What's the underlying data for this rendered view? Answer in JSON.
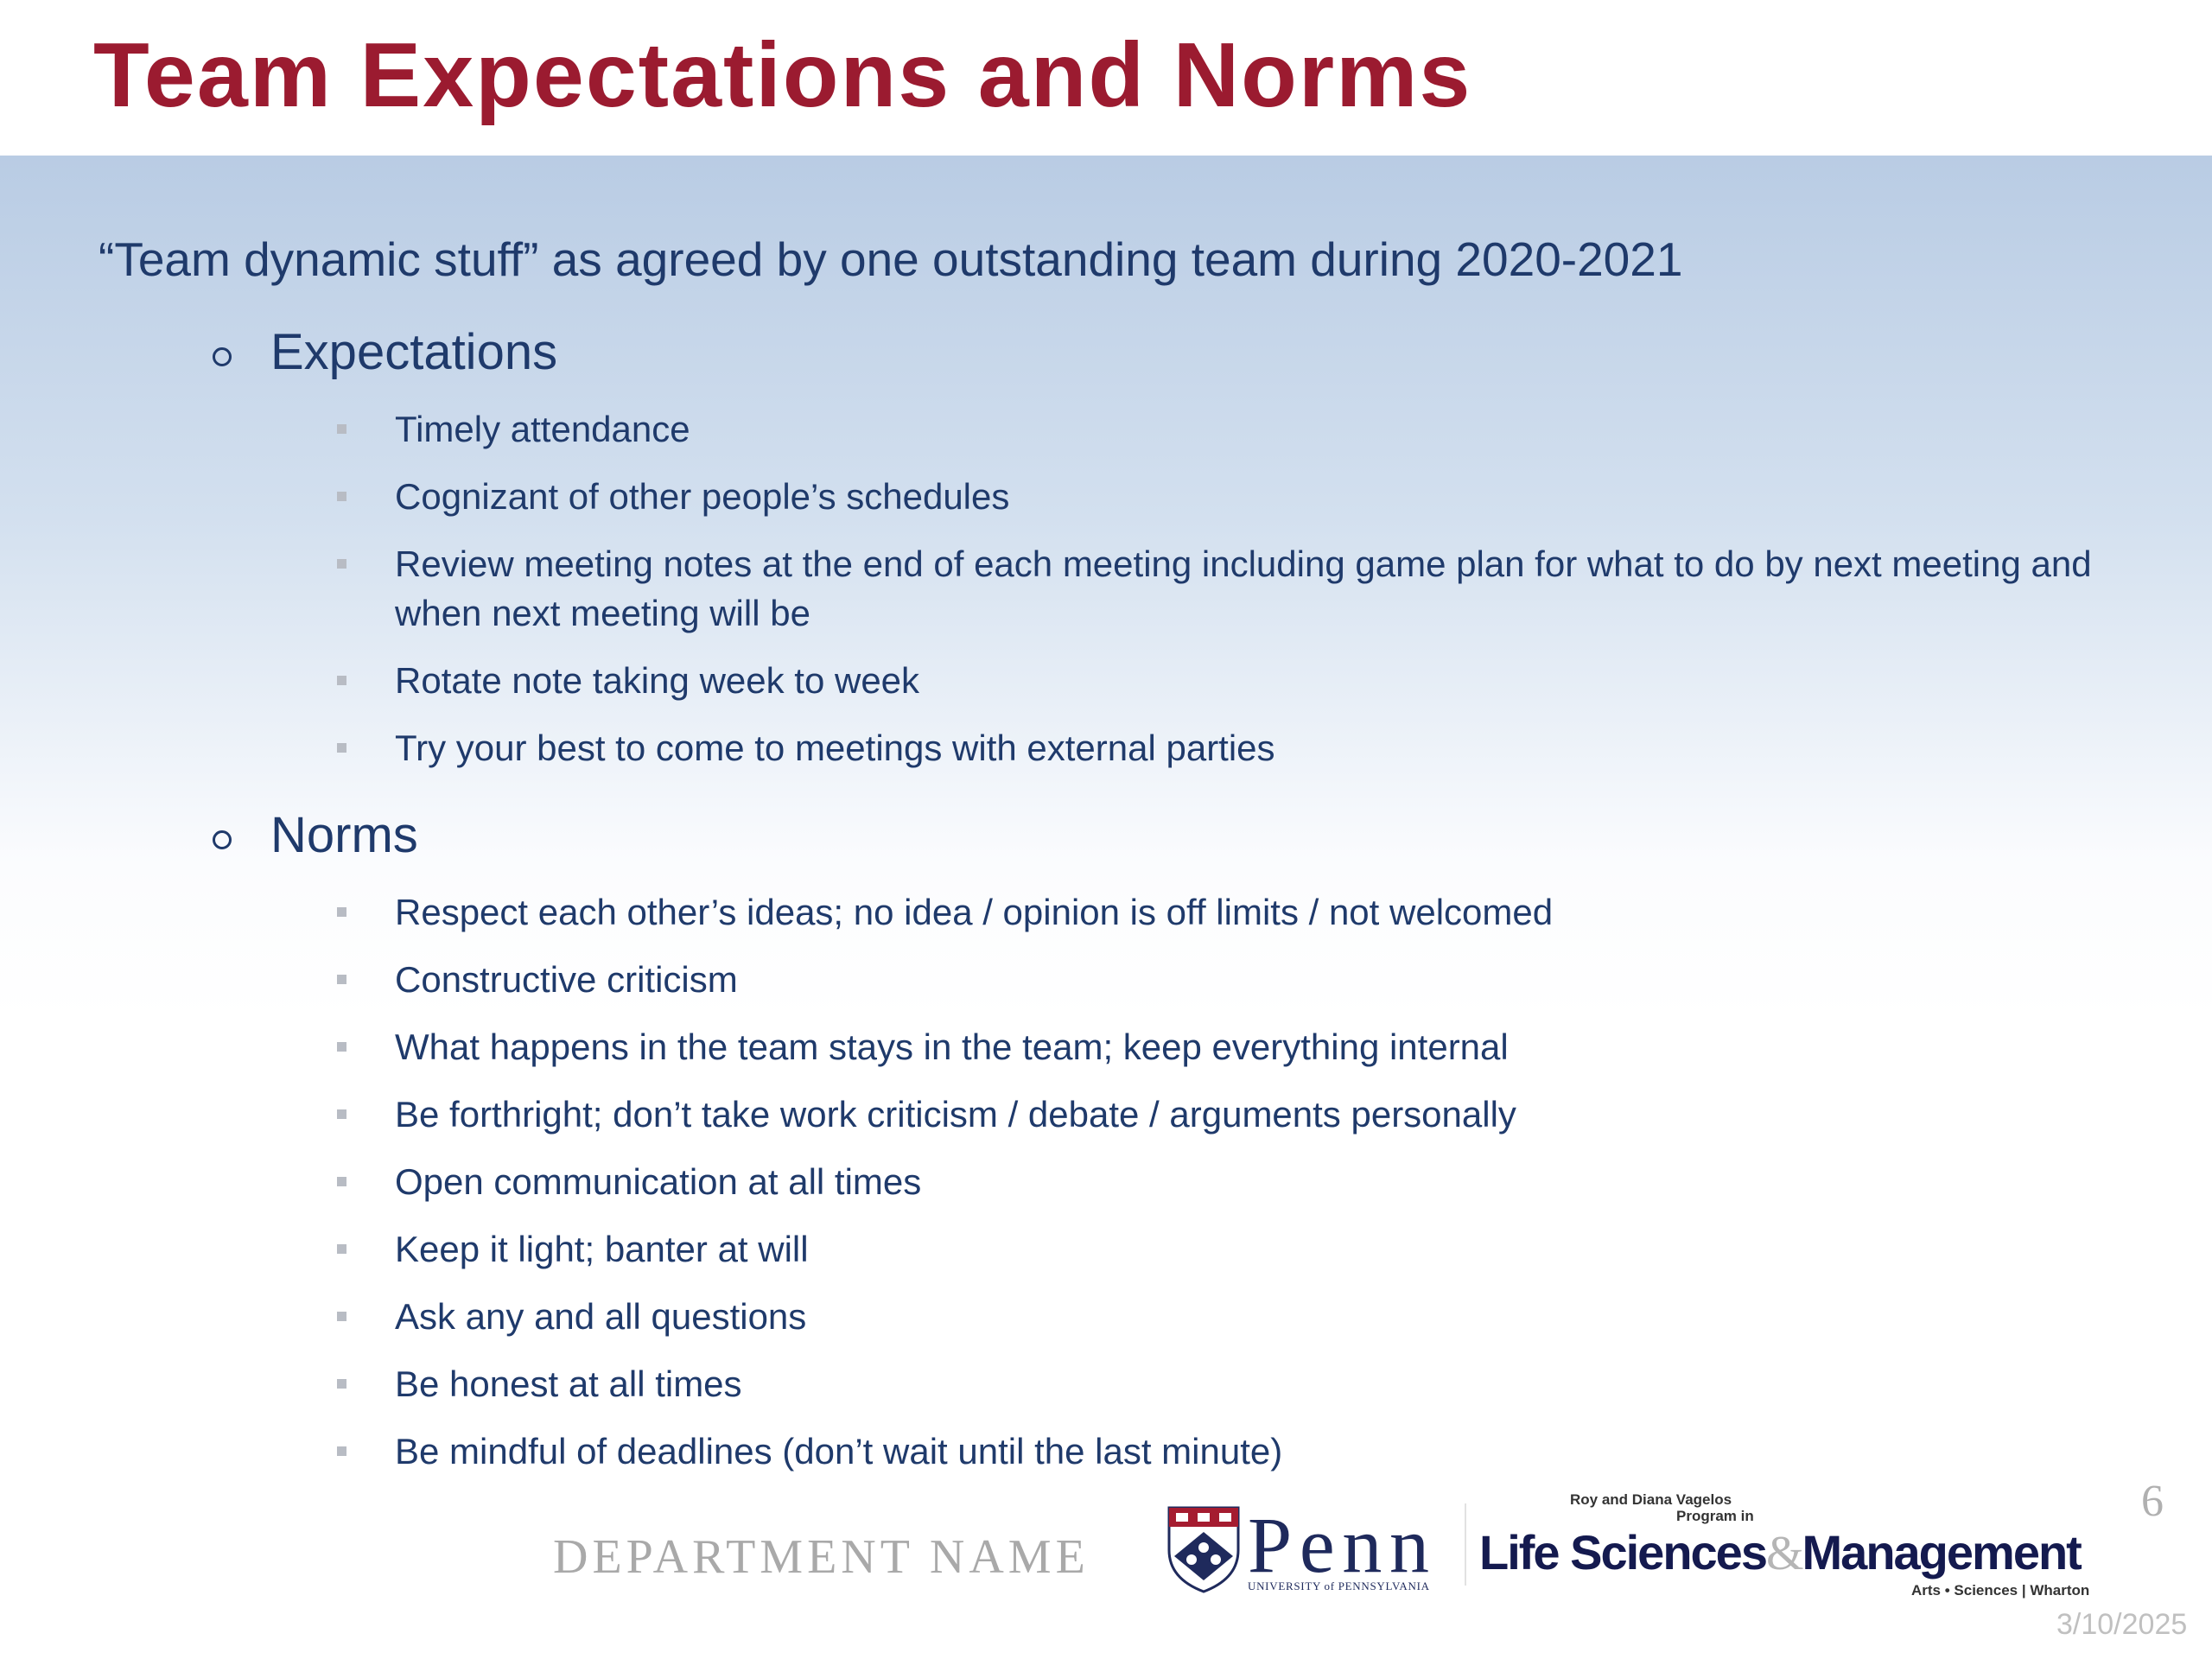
{
  "slide": {
    "title": "Team Expectations and Norms",
    "subtitle": "“Team dynamic stuff” as agreed by one outstanding team during 2020-2021",
    "sections": [
      {
        "heading": "Expectations",
        "items": [
          "Timely attendance",
          "Cognizant of other people’s schedules",
          "Review meeting notes at the end of each meeting including game plan for what to do by next meeting and when next meeting will be",
          "Rotate note taking week to week",
          "Try your best to come to meetings with external parties"
        ]
      },
      {
        "heading": "Norms",
        "items": [
          "Respect each other’s ideas; no idea / opinion is off limits / not welcomed",
          "Constructive criticism",
          "What happens in the team stays in the team; keep everything internal",
          "Be forthright; don’t take work criticism / debate / arguments personally",
          "Open communication at all times",
          "Keep it light; banter at will",
          "Ask any and all questions",
          "Be honest at all times",
          "Be mindful of deadlines (don’t wait until the last minute)"
        ]
      }
    ]
  },
  "footer": {
    "department": "DEPARTMENT NAME",
    "penn_logo": {
      "name": "Penn",
      "tagline": "University of Pennsylvania"
    },
    "lsm_logo": {
      "top_line1": "Roy and Diana Vagelos",
      "top_line2": "Program in",
      "main_left": "Life Sciences",
      "ampersand": "&",
      "main_right": "Management",
      "bottom": "Arts • Sciences | Wharton"
    },
    "page_number": "6",
    "date": "3/10/2025"
  },
  "colors": {
    "title": "#9b1b30",
    "text": "#1f3a6b",
    "band": "#b9cce4"
  }
}
